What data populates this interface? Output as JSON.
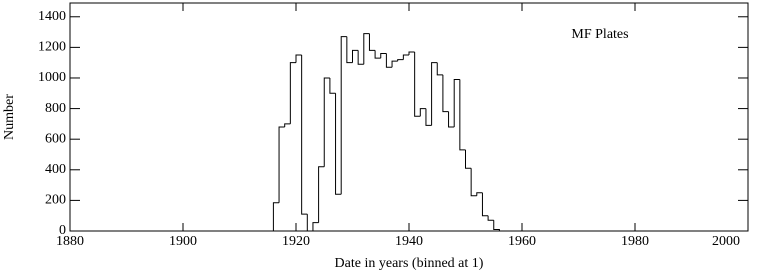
{
  "chart_data": {
    "type": "histogram",
    "annotation": "MF Plates",
    "xlabel": "Date in years (binned at 1)",
    "ylabel": "Number",
    "xlim": [
      1880,
      2000
    ],
    "ylim": [
      0,
      1490
    ],
    "xticks": [
      1880,
      1900,
      1920,
      1940,
      1960,
      1980,
      2000
    ],
    "yticks": [
      0,
      200,
      400,
      600,
      800,
      1000,
      1200,
      1400
    ],
    "color": "#000000",
    "bins": [
      1916,
      1917,
      1918,
      1919,
      1920,
      1921,
      1922,
      1923,
      1924,
      1925,
      1926,
      1927,
      1928,
      1929,
      1930,
      1931,
      1932,
      1933,
      1934,
      1935,
      1936,
      1937,
      1938,
      1939,
      1940,
      1941,
      1942,
      1943,
      1944,
      1945,
      1946,
      1947,
      1948,
      1949,
      1950,
      1951,
      1952,
      1953,
      1954,
      1955,
      1956
    ],
    "values": [
      185,
      680,
      700,
      1100,
      1150,
      110,
      0,
      55,
      420,
      1000,
      900,
      240,
      1270,
      1100,
      1180,
      1090,
      1290,
      1180,
      1130,
      1160,
      1070,
      1110,
      1120,
      1150,
      1170,
      750,
      800,
      690,
      1100,
      1020,
      780,
      680,
      990,
      530,
      410,
      230,
      250,
      100,
      70,
      10
    ]
  }
}
